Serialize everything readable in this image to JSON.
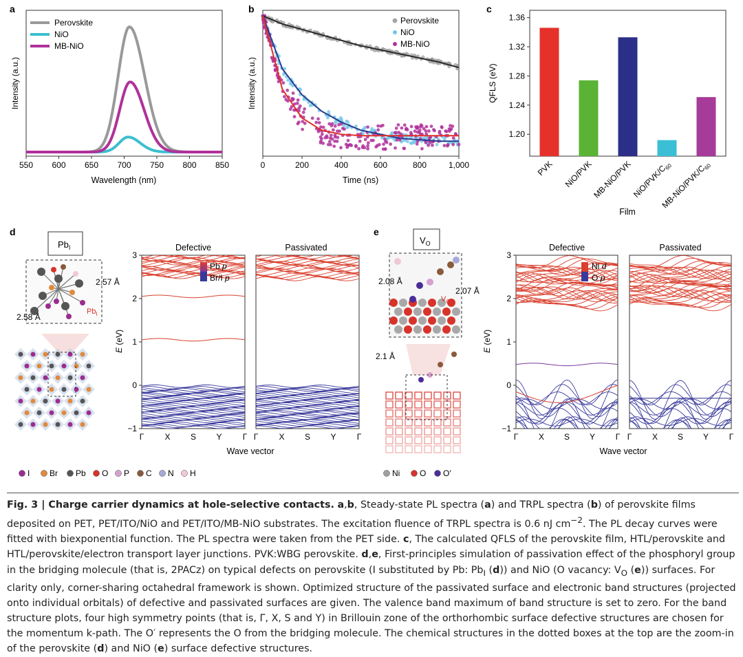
{
  "panel_labels": {
    "a": "a",
    "b": "b",
    "c": "c",
    "d": "d",
    "e": "e"
  },
  "colors": {
    "perovskite": "#999999",
    "nio": "#3bbfcf",
    "mbnio": "#b0319a",
    "fit_black": "#2a2a2a",
    "fit_blue": "#2a3a8c",
    "fit_red": "#e0302a",
    "pvk": "#e5312a",
    "nio_pvk": "#5ab335",
    "mb_pvk": "#2c2f88",
    "nio_c60": "#3bbfd4",
    "mb_c60": "#a63b99",
    "band_red": "#d9402e",
    "band_blue": "#3a3a9c"
  },
  "chart_data": [
    {
      "id": "a",
      "type": "line",
      "title": "",
      "xlabel": "Wavelength (nm)",
      "ylabel": "Intensity (a.u.)",
      "xlim": [
        550,
        850
      ],
      "x_ticks": [
        "550",
        "600",
        "650",
        "700",
        "750",
        "800",
        "850"
      ],
      "series": [
        {
          "name": "Perovskite",
          "peak_x": 708,
          "peak": 1.0,
          "width": 24
        },
        {
          "name": "NiO",
          "peak_x": 706,
          "peak": 0.12,
          "width": 19
        },
        {
          "name": "MB-NiO",
          "peak_x": 709,
          "peak": 0.56,
          "width": 22
        }
      ],
      "legend": [
        "Perovskite",
        "NiO",
        "MB-NiO"
      ],
      "legend_position": "top-left"
    },
    {
      "id": "b",
      "type": "scatter",
      "xlabel": "Time (ns)",
      "ylabel": "Intensity (a.u.)",
      "xlim": [
        0,
        1000
      ],
      "x_ticks": [
        "0",
        "200",
        "400",
        "600",
        "800",
        "1,000"
      ],
      "series": [
        {
          "name": "Perovskite",
          "fit": [
            1.0,
            0.94,
            0.9,
            0.86,
            0.82,
            0.78,
            0.75,
            0.72,
            0.69,
            0.66,
            0.62
          ]
        },
        {
          "name": "NiO",
          "fit": [
            1.0,
            0.61,
            0.42,
            0.3,
            0.22,
            0.16,
            0.13,
            0.1,
            0.09,
            0.08,
            0.08
          ]
        },
        {
          "name": "MB-NiO",
          "fit": [
            1.0,
            0.46,
            0.25,
            0.16,
            0.13,
            0.12,
            0.12,
            0.12,
            0.12,
            0.12,
            0.12
          ]
        }
      ],
      "legend": [
        "Perovskite",
        "NiO",
        "MB-NiO"
      ],
      "legend_position": "top-right"
    },
    {
      "id": "c",
      "type": "bar",
      "xlabel": "Film",
      "ylabel": "QFLS (eV)",
      "ylim": [
        1.17,
        1.37
      ],
      "y_ticks": [
        "1.20",
        "1.24",
        "1.28",
        "1.32",
        "1.36"
      ],
      "categories": [
        "PVK",
        "NiO/PVK",
        "MB-NiO/PVK",
        "NiO/PVK/C",
        "MB-NiO/PVK/C"
      ],
      "category_subscripts": [
        "",
        "",
        "",
        "60",
        "60"
      ],
      "values": [
        1.346,
        1.274,
        1.333,
        1.192,
        1.251
      ]
    },
    {
      "id": "d",
      "type": "line",
      "subpanels": [
        "Defective",
        "Passivated"
      ],
      "xlabel": "Wave vector",
      "ylabel": "E",
      "ylabel_unit": "(eV)",
      "ylim": [
        -1,
        3
      ],
      "y_ticks": [
        "−1",
        "0",
        "1",
        "2",
        "3"
      ],
      "k_ticks": [
        "Γ",
        "X",
        "S",
        "Y",
        "Γ"
      ],
      "legend": [
        {
          "label": "Pb",
          "orbital": "p"
        },
        {
          "label": "Br/I",
          "orbital": "p"
        }
      ],
      "defect_states": [
        2.05,
        1.05
      ]
    },
    {
      "id": "e",
      "type": "line",
      "subpanels": [
        "Defective",
        "Passivated"
      ],
      "xlabel": "Wave vector",
      "ylabel": "E",
      "ylabel_unit": "(eV)",
      "ylim": [
        -1,
        3
      ],
      "y_ticks": [
        "−1",
        "0",
        "1",
        "2",
        "3"
      ],
      "k_ticks": [
        "Γ",
        "X",
        "S",
        "Y",
        "Γ"
      ],
      "legend": [
        {
          "label": "Ni",
          "orbital": "d"
        },
        {
          "label": "O",
          "orbital": "p"
        }
      ],
      "defect_states": [
        0.48
      ]
    }
  ],
  "structure_d": {
    "box": "Pb",
    "box_sub": "I",
    "dist1": "2.57 Å",
    "dist2": "2.58 Å",
    "defect": "Pb",
    "defect_sub": "I"
  },
  "structure_e": {
    "box": "V",
    "box_sub": "O",
    "dist1": "2.08 Å",
    "dist2": "2.07 Å",
    "dist3": "2.1 Å",
    "defect": "V",
    "defect_sub": "O"
  },
  "atom_legend_d": [
    {
      "label": "I",
      "color": "#9b2d8f"
    },
    {
      "label": "Br",
      "color": "#e08a3c"
    },
    {
      "label": "Pb",
      "color": "#555555"
    },
    {
      "label": "O",
      "color": "#d8332b"
    },
    {
      "label": "P",
      "color": "#d7a0cf"
    },
    {
      "label": "C",
      "color": "#8a5a3c"
    },
    {
      "label": "N",
      "color": "#a8a8d8"
    },
    {
      "label": "H",
      "color": "#f0c8d8"
    }
  ],
  "atom_legend_e": [
    {
      "label": "Ni",
      "color": "#a0a0a0"
    },
    {
      "label": "O",
      "color": "#d8332b"
    },
    {
      "label": "O′",
      "color": "#4b2d9a"
    }
  ],
  "caption": {
    "head": "Fig. 3 | Charge carrier dynamics at hole-selective contacts.",
    "lab_ab": "a",
    "sep_ab": ",",
    "lab_b": "b",
    "text1": ", Steady-state PL spectra (",
    "lab_a2": "a",
    "text2": ") and TRPL spectra (",
    "lab_b2": "b",
    "text3": ") of perovskite films deposited on PET, PET/ITO/NiO and PET/ITO/MB-NiO substrates. The excitation fluence of TRPL spectra is 0.6 nJ cm",
    "sup1": "−2",
    "text4": ". The PL decay curves were fitted with biexponential function. The PL spectra were taken from the PET side. ",
    "lab_c": "c",
    "text5": ", The calculated QFLS of the perovskite film, HTL/perovskite and HTL/perovskite/electron transport layer junctions. PVK:WBG perovskite. ",
    "lab_de": "d",
    "sep_de": ",",
    "lab_e": "e",
    "text6": ", First-principles simulation of passivation effect of the phosphoryl group in the bridging molecule (that is, 2PACz) on typical defects on perovskite (I substituted by Pb: Pb",
    "sub1": "I",
    "text7": " (",
    "lab_d2": "d",
    "text8": ")) and NiO (O vacancy: V",
    "sub2": "O",
    "text9": " (",
    "lab_e2": "e",
    "text10": ")) surfaces. For clarity only, corner-sharing octahedral framework is shown. Optimized structure of the passivated surface and electronic band structures (projected onto individual orbitals) of defective and passivated surfaces are given. The valence band maximum of band structure is set to zero. For the band structure plots, four high symmetry points (that is, Γ, X, S and Y) in Brillouin zone of the orthorhombic surface defective structures are chosen for the momentum k-path. The O′ represents the O from the bridging molecule. The chemical structures in the dotted boxes at the top are the zoom-in of the perovskite (",
    "lab_d3": "d",
    "text11": ") and NiO (",
    "lab_e3": "e",
    "text12": ") surface defective structures."
  }
}
